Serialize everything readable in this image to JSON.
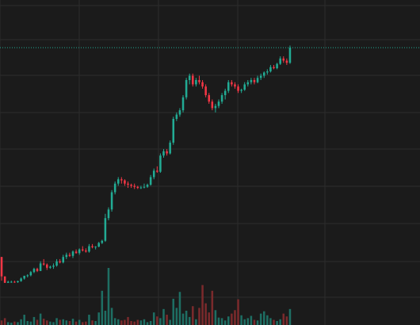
{
  "colors": {
    "background": "#1b1b1b",
    "grid": "#2c2c2c",
    "up": "#22ab94",
    "down": "#f23645",
    "volume_up": "#1e6e63",
    "volume_down": "#7a2a2c",
    "last_price_line": "#22ab94"
  },
  "chart_data": {
    "type": "candlestick",
    "title": "",
    "xlabel": "",
    "ylabel": "",
    "x_axis_labels_visible": false,
    "y_axis_labels_visible": false,
    "grid": true,
    "last_price_line": true,
    "price_range": [
      0,
      100
    ],
    "volume_range": [
      0,
      100
    ],
    "series": [
      {
        "ohlc": [
          [
            15,
            15,
            4,
            6
          ],
          [
            6,
            6,
            3,
            3
          ],
          [
            3,
            4,
            3,
            3.5
          ],
          [
            3.5,
            4,
            3,
            3.5
          ],
          [
            3.5,
            4,
            3,
            3.3
          ],
          [
            3.3,
            4,
            3,
            3.8
          ],
          [
            3.8,
            5.5,
            3.5,
            5
          ],
          [
            5,
            6,
            4.5,
            6.3
          ],
          [
            6.3,
            7,
            5.5,
            6.5
          ],
          [
            6.5,
            8.5,
            6,
            8
          ],
          [
            8,
            10,
            7.5,
            9.5
          ],
          [
            9.5,
            10,
            8,
            8.5
          ],
          [
            8.5,
            13,
            8.5,
            12
          ],
          [
            12,
            14,
            11,
            11.5
          ],
          [
            11.5,
            12,
            9,
            10
          ],
          [
            10,
            11,
            9.5,
            10.5
          ],
          [
            10.5,
            12,
            9.5,
            11
          ],
          [
            11,
            14,
            10.5,
            13
          ],
          [
            13,
            14,
            12,
            12.5
          ],
          [
            12.5,
            16,
            12,
            15
          ],
          [
            15,
            17,
            14,
            16
          ],
          [
            16,
            17,
            15,
            15.5
          ],
          [
            15.5,
            18,
            14.5,
            17.5
          ],
          [
            17.5,
            18.5,
            16.5,
            16.8
          ],
          [
            16.8,
            19,
            16,
            18.5
          ],
          [
            18.5,
            20,
            17.5,
            18
          ],
          [
            18,
            19,
            17,
            17.5
          ],
          [
            17.5,
            21,
            17,
            20
          ],
          [
            20,
            21,
            19,
            19.5
          ],
          [
            19.5,
            20,
            18.5,
            19.8
          ],
          [
            19.8,
            22,
            19.5,
            21.5
          ],
          [
            21.5,
            23,
            21,
            22.5
          ],
          [
            22.5,
            35,
            22,
            33
          ],
          [
            33,
            38,
            32,
            37
          ],
          [
            37,
            46,
            36,
            45
          ],
          [
            45,
            50,
            44,
            49
          ],
          [
            49,
            52,
            48,
            51
          ],
          [
            51,
            52,
            49,
            50.5
          ],
          [
            50.5,
            51,
            48,
            49
          ],
          [
            49,
            50,
            47,
            48.5
          ],
          [
            48.5,
            49,
            47,
            48
          ],
          [
            48,
            49,
            46.5,
            47.5
          ],
          [
            47.5,
            48,
            46.5,
            47
          ],
          [
            47,
            48,
            46.5,
            47.2
          ],
          [
            47.2,
            49,
            46.8,
            47.5
          ],
          [
            47.5,
            49,
            47,
            48.5
          ],
          [
            48.5,
            53,
            48,
            52
          ],
          [
            52,
            56,
            51,
            55
          ],
          [
            55,
            57,
            54,
            54.5
          ],
          [
            54.5,
            63,
            54,
            62
          ],
          [
            62,
            65,
            61,
            64
          ],
          [
            64,
            65,
            62,
            63
          ],
          [
            63,
            69,
            62.5,
            68
          ],
          [
            68,
            80,
            67,
            79
          ],
          [
            79,
            82,
            78,
            81
          ],
          [
            81,
            84,
            80,
            83
          ],
          [
            83,
            90,
            82,
            89
          ],
          [
            89,
            98,
            88,
            97
          ],
          [
            97,
            100,
            95,
            99
          ],
          [
            99,
            100,
            94,
            95
          ],
          [
            95,
            98,
            94,
            97
          ],
          [
            97,
            99,
            95,
            96
          ],
          [
            96,
            97,
            93,
            94
          ],
          [
            94,
            95,
            89,
            90
          ],
          [
            90,
            91,
            86,
            87
          ],
          [
            87,
            88,
            83,
            84
          ],
          [
            84,
            86,
            82,
            85
          ],
          [
            85,
            88,
            84,
            87
          ],
          [
            87,
            91,
            86,
            90
          ],
          [
            90,
            93,
            88,
            92
          ],
          [
            92,
            97,
            91,
            96
          ],
          [
            96,
            97,
            94,
            95
          ],
          [
            95,
            96,
            93,
            94
          ],
          [
            94,
            95,
            91,
            92
          ],
          [
            92,
            93,
            91,
            92.5
          ],
          [
            92.5,
            96,
            92,
            95
          ],
          [
            95,
            97,
            94,
            96
          ],
          [
            96,
            98,
            95,
            97
          ],
          [
            97,
            98,
            95,
            96
          ],
          [
            96,
            99,
            95.5,
            98
          ],
          [
            98,
            100,
            97,
            99
          ],
          [
            99,
            101,
            98,
            100.5
          ],
          [
            100.5,
            102,
            99.5,
            101
          ],
          [
            101,
            104,
            100.5,
            103
          ],
          [
            103,
            104,
            102,
            102.5
          ],
          [
            102.5,
            105,
            102,
            104.5
          ],
          [
            104.5,
            108,
            104,
            107
          ],
          [
            107,
            108,
            105,
            106
          ],
          [
            106,
            107,
            104,
            105
          ],
          [
            105,
            113,
            104.5,
            112
          ]
        ],
        "volume": [
          8,
          12,
          5,
          4,
          6,
          5,
          10,
          18,
          7,
          6,
          14,
          9,
          20,
          11,
          8,
          6,
          5,
          12,
          9,
          10,
          8,
          7,
          11,
          6,
          9,
          5,
          6,
          18,
          8,
          7,
          22,
          60,
          25,
          100,
          30,
          12,
          10,
          8,
          9,
          14,
          7,
          6,
          9,
          8,
          10,
          5,
          7,
          22,
          15,
          12,
          28,
          18,
          9,
          46,
          30,
          58,
          20,
          25,
          14,
          33,
          10,
          30,
          70,
          38,
          22,
          60,
          26,
          13,
          12,
          8,
          15,
          20,
          26,
          45,
          17,
          10,
          12,
          16,
          9,
          8,
          20,
          24,
          17,
          12,
          9,
          7,
          10,
          20,
          15,
          28
        ]
      }
    ]
  }
}
